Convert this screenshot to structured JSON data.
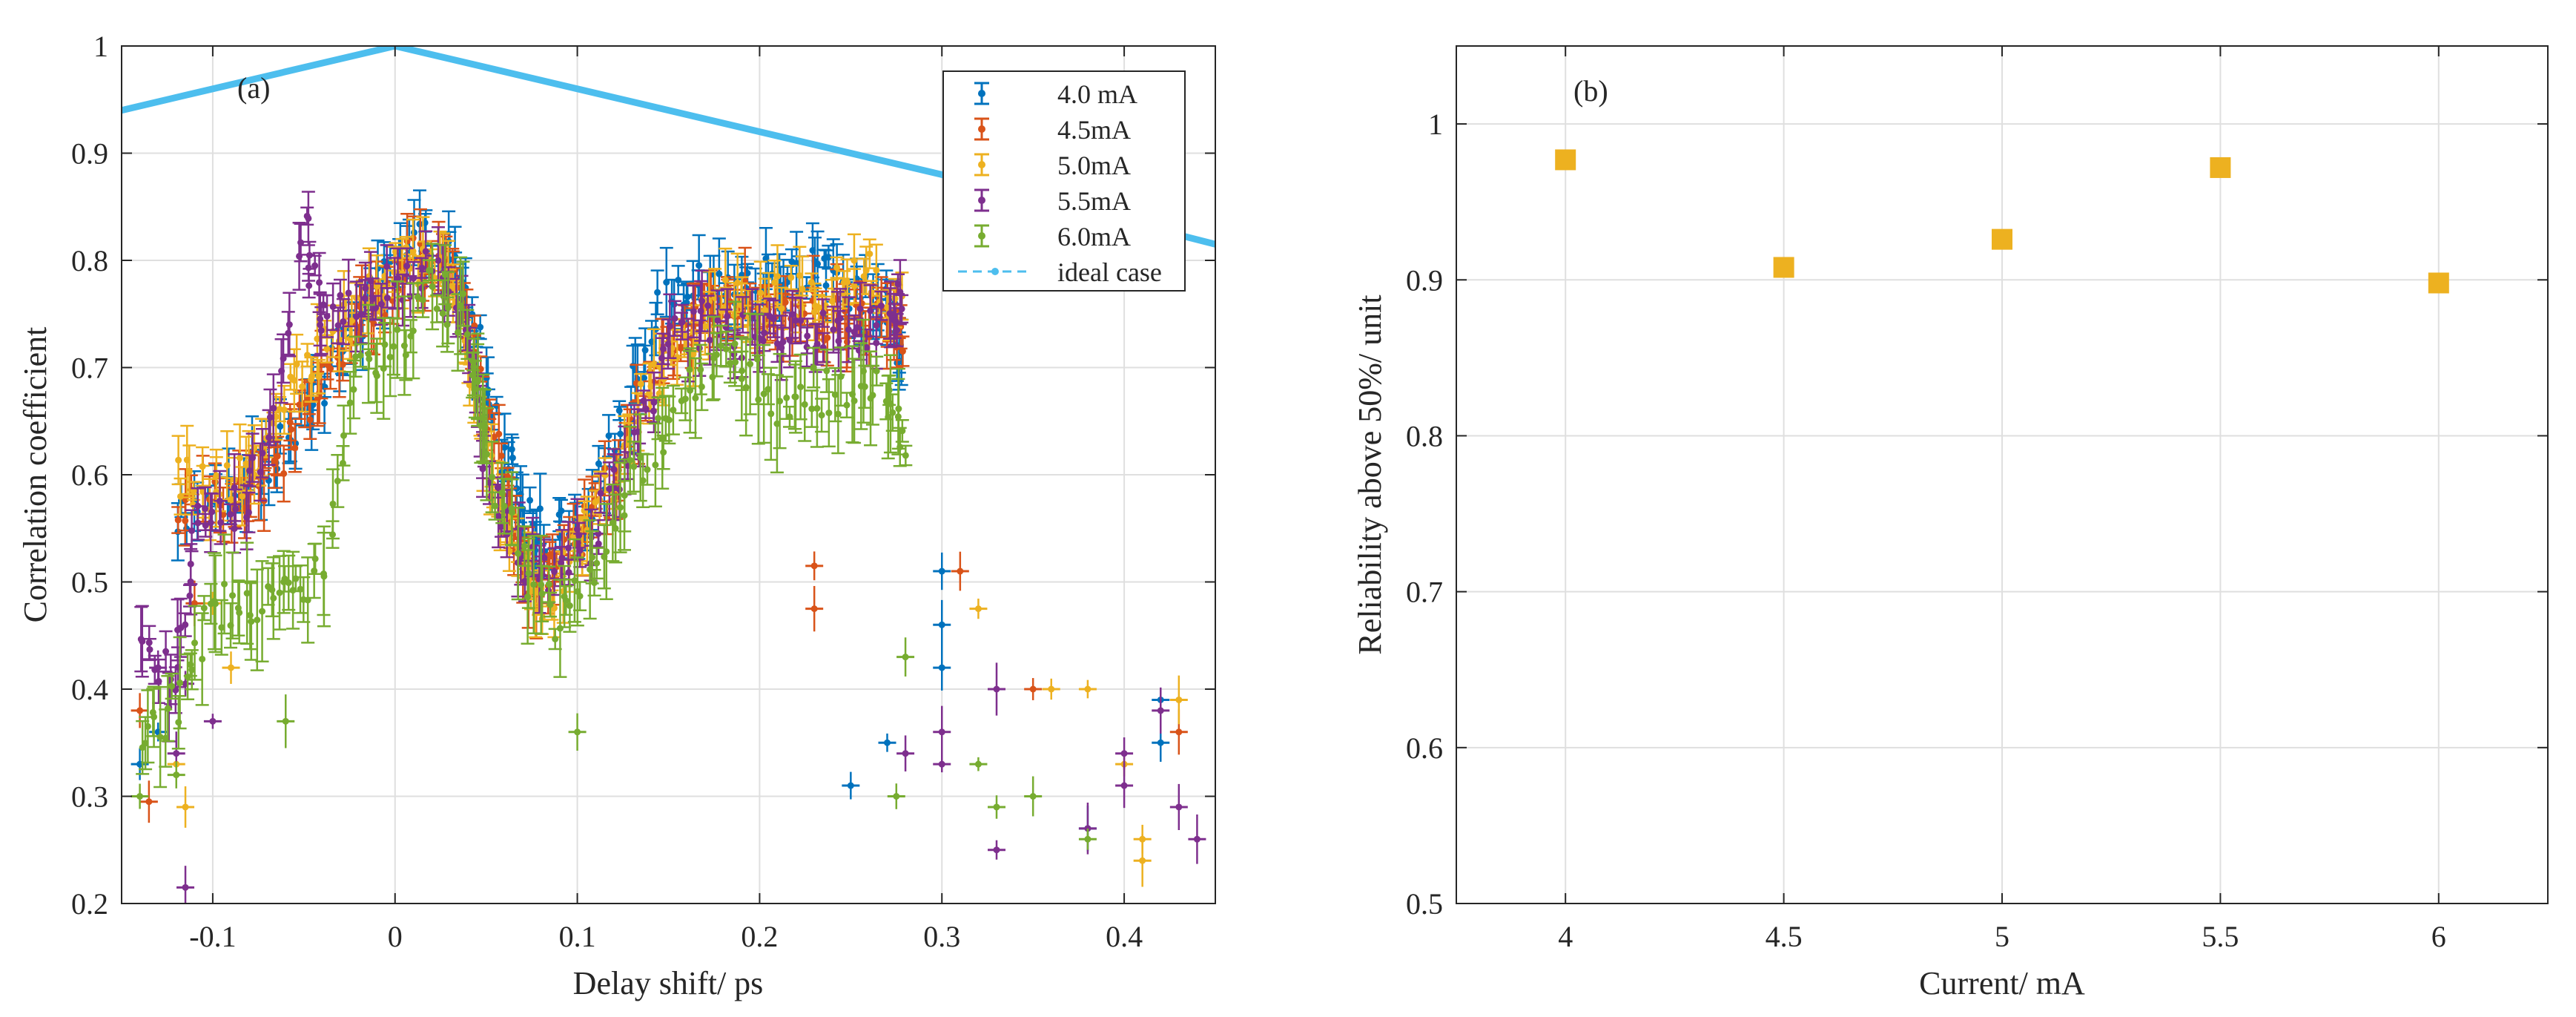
{
  "chart_data": [
    {
      "type": "scatter",
      "panel_label": "(a)",
      "xlabel": "Delay shift/ ps",
      "ylabel": "Correlation coefficient",
      "xlim": [
        -0.15,
        0.45
      ],
      "ylim": [
        0.2,
        1.0
      ],
      "xticks": [
        -0.1,
        0,
        0.1,
        0.2,
        0.3,
        0.4
      ],
      "xtick_labels": [
        "-0.1",
        "0",
        "0.1",
        "0.2",
        "0.3",
        "0.4"
      ],
      "yticks": [
        0.2,
        0.3,
        0.4,
        0.5,
        0.6,
        0.7,
        0.8,
        0.9,
        1.0
      ],
      "ytick_labels": [
        "0.2",
        "0.3",
        "0.4",
        "0.5",
        "0.6",
        "0.7",
        "0.8",
        "0.9",
        "1"
      ],
      "grid": true,
      "legend_position": "top-right",
      "ideal": {
        "name": "ideal case",
        "color": "#4DBEEE",
        "x": [
          -0.15,
          0.0,
          0.3,
          0.45
        ],
        "y": [
          0.94,
          1.0,
          0.88,
          0.815
        ]
      },
      "series": [
        {
          "name": "4.0 mA",
          "color": "#0072BD",
          "key": [
            [
              -0.12,
              0.56
            ],
            [
              -0.09,
              0.58
            ],
            [
              -0.07,
              0.61
            ],
            [
              -0.05,
              0.66
            ],
            [
              -0.03,
              0.71
            ],
            [
              -0.01,
              0.77
            ],
            [
              0.01,
              0.82
            ],
            [
              0.03,
              0.8
            ],
            [
              0.045,
              0.73
            ],
            [
              0.06,
              0.62
            ],
            [
              0.075,
              0.55
            ],
            [
              0.09,
              0.54
            ],
            [
              0.11,
              0.58
            ],
            [
              0.13,
              0.68
            ],
            [
              0.15,
              0.77
            ],
            [
              0.17,
              0.78
            ],
            [
              0.19,
              0.77
            ],
            [
              0.21,
              0.79
            ],
            [
              0.23,
              0.79
            ],
            [
              0.25,
              0.77
            ],
            [
              0.27,
              0.76
            ],
            [
              0.28,
              0.7
            ]
          ],
          "stray": [
            [
              0.3,
              0.51
            ],
            [
              0.3,
              0.46
            ],
            [
              0.3,
              0.42
            ],
            [
              0.27,
              0.35
            ],
            [
              0.25,
              0.31
            ],
            [
              0.38,
              0.27
            ],
            [
              0.42,
              0.39
            ],
            [
              0.42,
              0.35
            ],
            [
              -0.14,
              0.33
            ],
            [
              -0.13,
              0.36
            ]
          ]
        },
        {
          "name": "4.5mA",
          "color": "#D95319",
          "key": [
            [
              -0.12,
              0.58
            ],
            [
              -0.09,
              0.57
            ],
            [
              -0.07,
              0.6
            ],
            [
              -0.05,
              0.65
            ],
            [
              -0.03,
              0.71
            ],
            [
              -0.01,
              0.76
            ],
            [
              0.01,
              0.8
            ],
            [
              0.03,
              0.79
            ],
            [
              0.045,
              0.71
            ],
            [
              0.06,
              0.58
            ],
            [
              0.075,
              0.49
            ],
            [
              0.09,
              0.52
            ],
            [
              0.11,
              0.56
            ],
            [
              0.13,
              0.65
            ],
            [
              0.15,
              0.71
            ],
            [
              0.17,
              0.75
            ],
            [
              0.19,
              0.76
            ],
            [
              0.21,
              0.75
            ],
            [
              0.23,
              0.75
            ],
            [
              0.25,
              0.74
            ],
            [
              0.27,
              0.75
            ],
            [
              0.28,
              0.72
            ]
          ],
          "stray": [
            [
              0.23,
              0.515
            ],
            [
              0.23,
              0.475
            ],
            [
              0.31,
              0.51
            ],
            [
              -0.135,
              0.295
            ],
            [
              -0.11,
              0.48
            ],
            [
              -0.14,
              0.38
            ],
            [
              0.35,
              0.4
            ],
            [
              0.43,
              0.36
            ]
          ]
        },
        {
          "name": "5.0mA",
          "color": "#EDB120",
          "key": [
            [
              -0.12,
              0.6
            ],
            [
              -0.1,
              0.58
            ],
            [
              -0.08,
              0.6
            ],
            [
              -0.06,
              0.68
            ],
            [
              -0.04,
              0.71
            ],
            [
              -0.02,
              0.75
            ],
            [
              0.0,
              0.79
            ],
            [
              0.02,
              0.8
            ],
            [
              0.035,
              0.76
            ],
            [
              0.05,
              0.62
            ],
            [
              0.065,
              0.53
            ],
            [
              0.08,
              0.48
            ],
            [
              0.1,
              0.53
            ],
            [
              0.12,
              0.6
            ],
            [
              0.14,
              0.68
            ],
            [
              0.16,
              0.73
            ],
            [
              0.18,
              0.76
            ],
            [
              0.2,
              0.76
            ],
            [
              0.22,
              0.77
            ],
            [
              0.24,
              0.77
            ],
            [
              0.26,
              0.79
            ],
            [
              0.28,
              0.74
            ]
          ],
          "stray": [
            [
              0.32,
              0.475
            ],
            [
              -0.115,
              0.29
            ],
            [
              -0.09,
              0.42
            ],
            [
              -0.1,
              0.48
            ],
            [
              0.36,
              0.4
            ],
            [
              0.4,
              0.33
            ],
            [
              0.41,
              0.26
            ],
            [
              0.41,
              0.24
            ],
            [
              0.43,
              0.39
            ],
            [
              0.38,
              0.4
            ],
            [
              -0.12,
              0.33
            ]
          ]
        },
        {
          "name": "5.5mA",
          "color": "#7E2F8E",
          "key": [
            [
              -0.14,
              0.44
            ],
            [
              -0.12,
              0.4
            ],
            [
              -0.11,
              0.55
            ],
            [
              -0.09,
              0.56
            ],
            [
              -0.07,
              0.62
            ],
            [
              -0.05,
              0.83
            ],
            [
              -0.04,
              0.74
            ],
            [
              -0.02,
              0.75
            ],
            [
              0.0,
              0.78
            ],
            [
              0.02,
              0.79
            ],
            [
              0.04,
              0.74
            ],
            [
              0.05,
              0.6
            ],
            [
              0.07,
              0.52
            ],
            [
              0.09,
              0.5
            ],
            [
              0.11,
              0.55
            ],
            [
              0.13,
              0.62
            ],
            [
              0.15,
              0.72
            ],
            [
              0.17,
              0.74
            ],
            [
              0.19,
              0.73
            ],
            [
              0.21,
              0.74
            ],
            [
              0.23,
              0.73
            ],
            [
              0.25,
              0.73
            ],
            [
              0.27,
              0.75
            ],
            [
              0.28,
              0.76
            ]
          ],
          "stray": [
            [
              -0.12,
              0.34
            ],
            [
              -0.115,
              0.215
            ],
            [
              -0.115,
              0.405
            ],
            [
              -0.1,
              0.37
            ],
            [
              0.3,
              0.36
            ],
            [
              0.3,
              0.33
            ],
            [
              0.28,
              0.34
            ],
            [
              0.33,
              0.25
            ],
            [
              0.33,
              0.4
            ],
            [
              0.38,
              0.27
            ],
            [
              0.4,
              0.34
            ],
            [
              0.4,
              0.31
            ],
            [
              0.42,
              0.38
            ],
            [
              0.43,
              0.29
            ],
            [
              0.44,
              0.26
            ],
            [
              -0.13,
              0.42
            ]
          ]
        },
        {
          "name": "6.0mA",
          "color": "#77AC30",
          "key": [
            [
              -0.14,
              0.35
            ],
            [
              -0.12,
              0.39
            ],
            [
              -0.1,
              0.48
            ],
            [
              -0.08,
              0.47
            ],
            [
              -0.06,
              0.5
            ],
            [
              -0.04,
              0.5
            ],
            [
              -0.02,
              0.69
            ],
            [
              0.0,
              0.72
            ],
            [
              0.02,
              0.78
            ],
            [
              0.04,
              0.74
            ],
            [
              0.05,
              0.63
            ],
            [
              0.07,
              0.52
            ],
            [
              0.09,
              0.46
            ],
            [
              0.11,
              0.52
            ],
            [
              0.13,
              0.6
            ],
            [
              0.15,
              0.65
            ],
            [
              0.17,
              0.7
            ],
            [
              0.19,
              0.7
            ],
            [
              0.21,
              0.67
            ],
            [
              0.23,
              0.68
            ],
            [
              0.25,
              0.67
            ],
            [
              0.27,
              0.68
            ],
            [
              0.28,
              0.63
            ]
          ],
          "stray": [
            [
              0.28,
              0.43
            ],
            [
              0.275,
              0.3
            ],
            [
              0.32,
              0.33
            ],
            [
              0.33,
              0.29
            ],
            [
              0.35,
              0.3
            ],
            [
              -0.14,
              0.3
            ],
            [
              -0.12,
              0.32
            ],
            [
              -0.06,
              0.37
            ],
            [
              0.46,
              0.285
            ],
            [
              0.1,
              0.36
            ],
            [
              0.38,
              0.26
            ]
          ]
        }
      ]
    },
    {
      "type": "scatter",
      "panel_label": "(b)",
      "xlabel": "Current/ mA",
      "ylabel": "Reliability above 50%/ unit",
      "xlim": [
        3.75,
        6.25
      ],
      "ylim": [
        0.5,
        1.05
      ],
      "xticks": [
        4,
        4.5,
        5,
        5.5,
        6
      ],
      "xtick_labels": [
        "4",
        "4.5",
        "5",
        "5.5",
        "6"
      ],
      "yticks": [
        0.5,
        0.6,
        0.7,
        0.8,
        0.9,
        1.0
      ],
      "ytick_labels": [
        "0.5",
        "0.6",
        "0.7",
        "0.8",
        "0.9",
        "1"
      ],
      "grid": true,
      "marker": "square",
      "color": "#EDB120",
      "x": [
        4,
        4.5,
        5,
        5.5,
        6
      ],
      "y": [
        0.977,
        0.908,
        0.926,
        0.972,
        0.898
      ]
    }
  ]
}
